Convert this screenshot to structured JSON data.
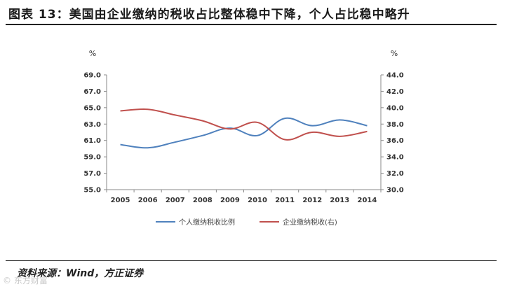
{
  "header": {
    "title": "图表 13：美国由企业缴纳的税收占比整体稳中下降，个人占比稳中略升"
  },
  "footer": {
    "source": "资料来源：Wind，方正证券",
    "watermark": "© 东方财富"
  },
  "chart_data": {
    "type": "line",
    "title": "",
    "x": [
      "2005",
      "2006",
      "2007",
      "2008",
      "2009",
      "2010",
      "2011",
      "2012",
      "2013",
      "2014"
    ],
    "y_left": {
      "unit": "%",
      "ylim": [
        55.0,
        69.0
      ],
      "ticks": [
        "55.0",
        "57.0",
        "59.0",
        "61.0",
        "63.0",
        "65.0",
        "67.0",
        "69.0"
      ]
    },
    "y_right": {
      "unit": "%",
      "ylim": [
        30.0,
        44.0
      ],
      "ticks": [
        "30.0",
        "32.0",
        "34.0",
        "36.0",
        "38.0",
        "40.0",
        "42.0",
        "44.0"
      ]
    },
    "series": [
      {
        "name": "个人缴纳税收比例",
        "axis": "left",
        "color": "#4f81bd",
        "values": [
          60.5,
          60.1,
          60.8,
          61.6,
          62.5,
          61.6,
          63.7,
          62.8,
          63.5,
          62.8
        ]
      },
      {
        "name": "企业缴纳税收(右)",
        "axis": "right",
        "color": "#c0504d",
        "values": [
          39.6,
          39.8,
          39.1,
          38.4,
          37.4,
          38.2,
          36.1,
          37.0,
          36.5,
          37.1
        ]
      }
    ],
    "grid": false,
    "legend": "bottom"
  }
}
